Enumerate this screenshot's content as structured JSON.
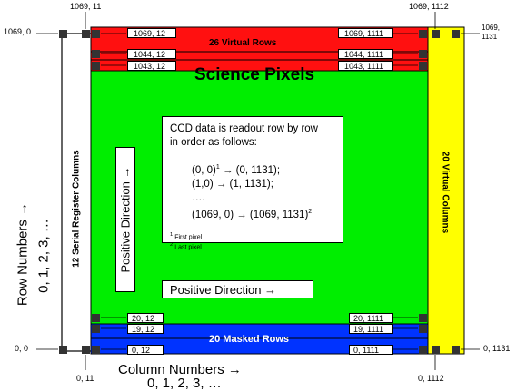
{
  "colors": {
    "virtual_rows": "#ff1010",
    "science": "#00ee00",
    "masked_rows": "#0033ff",
    "virtual_columns": "#ffff00",
    "serial_register": "#ffffff"
  },
  "corners": {
    "top_left_outer": "1069, 0",
    "top_left_inner": "1069, 11",
    "top_right_inner": "1069, 1112",
    "top_right_outer": "1069,\n1131",
    "bottom_left_outer": "0, 0",
    "bottom_left_inner": "0, 11",
    "bottom_right_inner": "0, 1112",
    "bottom_right_outer": "0, 1131"
  },
  "row_tags": {
    "r1069_12": "1069, 12",
    "r1069_1111": "1069, 1111",
    "r1044_12": "1044, 12",
    "r1044_1111": "1044, 1111",
    "r1043_12": "1043, 12",
    "r1043_1111": "1043, 1111",
    "r20_12": "20, 12",
    "r20_1111": "20, 1111",
    "r19_12": "19, 12",
    "r19_1111": "19, 1111",
    "r0_12": "0, 12",
    "r0_1111": "0, 1111"
  },
  "regions": {
    "virtual_rows": "26 Virtual Rows",
    "science": "Science Pixels",
    "masked_rows": "20 Masked Rows",
    "virtual_columns": "20 Virtual Columns",
    "serial_register": "12 Serial Register Columns"
  },
  "readout": {
    "line1": "CCD data is readout row by row",
    "line2": "in order as follows:",
    "seq1": "(0, 0)",
    "seq1_sup": "1",
    "seq1_rest": " → (0, 1131);",
    "seq2": "(1,0) → (1, 1131);",
    "seq3": "….",
    "seq4": "(1069, 0) → (1069, 1131)",
    "seq4_sup": "2",
    "fn1_sup": "1",
    "fn1": " First pixel",
    "fn2_sup": "2",
    "fn2": " Last pixel"
  },
  "directions": {
    "horizontal": "Positive Direction →",
    "vertical": "Positive Direction →"
  },
  "axes": {
    "row_title": "Row Numbers →",
    "row_values": "0, 1, 2, 3, …",
    "col_title": "Column Numbers →",
    "col_values": "0, 1, 2, 3, …"
  }
}
